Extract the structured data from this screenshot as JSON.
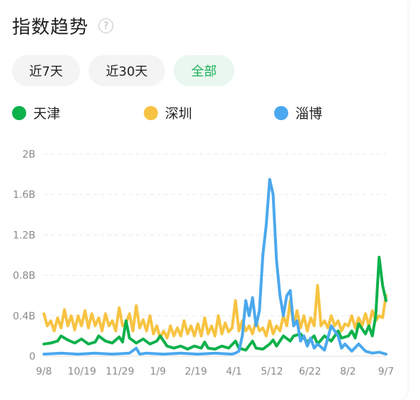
{
  "header": {
    "title": "指数趋势",
    "help_icon": "question-circle-icon"
  },
  "tabs": [
    {
      "label": "近7天",
      "active": false
    },
    {
      "label": "近30天",
      "active": false
    },
    {
      "label": "全部",
      "active": true
    }
  ],
  "chart_data": {
    "type": "line",
    "x_ticks": [
      "9/8",
      "10/19",
      "11/29",
      "1/9",
      "2/19",
      "4/1",
      "5/12",
      "6/22",
      "8/2",
      "9/7"
    ],
    "y_ticks": [
      "0",
      "0.4B",
      "0.8B",
      "1.2B",
      "1.6B",
      "2B"
    ],
    "ylim": [
      0,
      2.0
    ],
    "grid": true,
    "legend_position": "top",
    "series": [
      {
        "name": "天津",
        "color": "#0db14b",
        "points": [
          [
            0,
            0.12
          ],
          [
            0.02,
            0.13
          ],
          [
            0.04,
            0.15
          ],
          [
            0.05,
            0.2
          ],
          [
            0.07,
            0.16
          ],
          [
            0.09,
            0.13
          ],
          [
            0.11,
            0.17
          ],
          [
            0.13,
            0.12
          ],
          [
            0.15,
            0.14
          ],
          [
            0.16,
            0.2
          ],
          [
            0.18,
            0.15
          ],
          [
            0.2,
            0.13
          ],
          [
            0.22,
            0.19
          ],
          [
            0.23,
            0.14
          ],
          [
            0.24,
            0.35
          ],
          [
            0.25,
            0.18
          ],
          [
            0.27,
            0.13
          ],
          [
            0.29,
            0.17
          ],
          [
            0.31,
            0.12
          ],
          [
            0.33,
            0.15
          ],
          [
            0.34,
            0.2
          ],
          [
            0.36,
            0.1
          ],
          [
            0.38,
            0.08
          ],
          [
            0.4,
            0.1
          ],
          [
            0.42,
            0.07
          ],
          [
            0.44,
            0.1
          ],
          [
            0.46,
            0.08
          ],
          [
            0.47,
            0.14
          ],
          [
            0.48,
            0.08
          ],
          [
            0.5,
            0.07
          ],
          [
            0.52,
            0.1
          ],
          [
            0.54,
            0.08
          ],
          [
            0.56,
            0.15
          ],
          [
            0.57,
            0.08
          ],
          [
            0.59,
            0.06
          ],
          [
            0.61,
            0.15
          ],
          [
            0.62,
            0.08
          ],
          [
            0.64,
            0.07
          ],
          [
            0.66,
            0.12
          ],
          [
            0.67,
            0.16
          ],
          [
            0.68,
            0.1
          ],
          [
            0.7,
            0.2
          ],
          [
            0.72,
            0.15
          ],
          [
            0.73,
            0.2
          ],
          [
            0.75,
            0.22
          ],
          [
            0.77,
            0.14
          ],
          [
            0.79,
            0.2
          ],
          [
            0.8,
            0.12
          ],
          [
            0.82,
            0.2
          ],
          [
            0.84,
            0.15
          ],
          [
            0.86,
            0.25
          ],
          [
            0.87,
            0.18
          ],
          [
            0.89,
            0.2
          ],
          [
            0.9,
            0.25
          ],
          [
            0.91,
            0.18
          ],
          [
            0.92,
            0.32
          ],
          [
            0.94,
            0.22
          ],
          [
            0.95,
            0.3
          ],
          [
            0.96,
            0.2
          ],
          [
            0.97,
            0.4
          ],
          [
            0.98,
            0.98
          ],
          [
            0.99,
            0.7
          ],
          [
            1.0,
            0.55
          ]
        ]
      },
      {
        "name": "深圳",
        "color": "#f7c342",
        "points": [
          [
            0,
            0.42
          ],
          [
            0.01,
            0.3
          ],
          [
            0.02,
            0.35
          ],
          [
            0.03,
            0.25
          ],
          [
            0.04,
            0.38
          ],
          [
            0.05,
            0.28
          ],
          [
            0.06,
            0.46
          ],
          [
            0.07,
            0.3
          ],
          [
            0.08,
            0.4
          ],
          [
            0.09,
            0.26
          ],
          [
            0.1,
            0.4
          ],
          [
            0.11,
            0.3
          ],
          [
            0.12,
            0.45
          ],
          [
            0.13,
            0.28
          ],
          [
            0.14,
            0.42
          ],
          [
            0.15,
            0.3
          ],
          [
            0.16,
            0.38
          ],
          [
            0.17,
            0.25
          ],
          [
            0.18,
            0.42
          ],
          [
            0.19,
            0.3
          ],
          [
            0.2,
            0.35
          ],
          [
            0.21,
            0.25
          ],
          [
            0.22,
            0.48
          ],
          [
            0.23,
            0.3
          ],
          [
            0.24,
            0.33
          ],
          [
            0.25,
            0.42
          ],
          [
            0.26,
            0.25
          ],
          [
            0.27,
            0.5
          ],
          [
            0.28,
            0.28
          ],
          [
            0.29,
            0.36
          ],
          [
            0.3,
            0.25
          ],
          [
            0.31,
            0.4
          ],
          [
            0.32,
            0.22
          ],
          [
            0.33,
            0.3
          ],
          [
            0.34,
            0.18
          ],
          [
            0.35,
            0.25
          ],
          [
            0.36,
            0.18
          ],
          [
            0.37,
            0.3
          ],
          [
            0.38,
            0.2
          ],
          [
            0.39,
            0.28
          ],
          [
            0.4,
            0.2
          ],
          [
            0.41,
            0.35
          ],
          [
            0.42,
            0.22
          ],
          [
            0.43,
            0.3
          ],
          [
            0.44,
            0.2
          ],
          [
            0.45,
            0.32
          ],
          [
            0.46,
            0.2
          ],
          [
            0.47,
            0.38
          ],
          [
            0.48,
            0.22
          ],
          [
            0.49,
            0.3
          ],
          [
            0.5,
            0.2
          ],
          [
            0.51,
            0.4
          ],
          [
            0.52,
            0.22
          ],
          [
            0.53,
            0.33
          ],
          [
            0.54,
            0.24
          ],
          [
            0.55,
            0.28
          ],
          [
            0.56,
            0.55
          ],
          [
            0.57,
            0.25
          ],
          [
            0.58,
            0.35
          ],
          [
            0.59,
            0.25
          ],
          [
            0.6,
            0.3
          ],
          [
            0.61,
            0.22
          ],
          [
            0.62,
            0.35
          ],
          [
            0.63,
            0.25
          ],
          [
            0.64,
            0.28
          ],
          [
            0.65,
            0.2
          ],
          [
            0.66,
            0.35
          ],
          [
            0.67,
            0.22
          ],
          [
            0.68,
            0.3
          ],
          [
            0.69,
            0.25
          ],
          [
            0.7,
            0.4
          ],
          [
            0.71,
            0.3
          ],
          [
            0.72,
            0.55
          ],
          [
            0.73,
            0.3
          ],
          [
            0.74,
            0.45
          ],
          [
            0.75,
            0.28
          ],
          [
            0.76,
            0.4
          ],
          [
            0.77,
            0.25
          ],
          [
            0.78,
            0.38
          ],
          [
            0.79,
            0.3
          ],
          [
            0.8,
            0.7
          ],
          [
            0.81,
            0.3
          ],
          [
            0.82,
            0.35
          ],
          [
            0.83,
            0.28
          ],
          [
            0.84,
            0.4
          ],
          [
            0.85,
            0.3
          ],
          [
            0.86,
            0.35
          ],
          [
            0.87,
            0.25
          ],
          [
            0.88,
            0.32
          ],
          [
            0.89,
            0.3
          ],
          [
            0.9,
            0.4
          ],
          [
            0.91,
            0.28
          ],
          [
            0.92,
            0.38
          ],
          [
            0.93,
            0.3
          ],
          [
            0.94,
            0.42
          ],
          [
            0.95,
            0.3
          ],
          [
            0.96,
            0.45
          ],
          [
            0.97,
            0.35
          ],
          [
            0.98,
            0.4
          ],
          [
            0.99,
            0.38
          ],
          [
            1.0,
            0.6
          ]
        ]
      },
      {
        "name": "淄博",
        "color": "#4ba8ee",
        "points": [
          [
            0,
            0.02
          ],
          [
            0.05,
            0.03
          ],
          [
            0.1,
            0.02
          ],
          [
            0.15,
            0.03
          ],
          [
            0.2,
            0.02
          ],
          [
            0.25,
            0.03
          ],
          [
            0.27,
            0.08
          ],
          [
            0.28,
            0.02
          ],
          [
            0.3,
            0.03
          ],
          [
            0.35,
            0.02
          ],
          [
            0.4,
            0.03
          ],
          [
            0.45,
            0.02
          ],
          [
            0.5,
            0.03
          ],
          [
            0.55,
            0.02
          ],
          [
            0.56,
            0.03
          ],
          [
            0.57,
            0.05
          ],
          [
            0.58,
            0.2
          ],
          [
            0.59,
            0.55
          ],
          [
            0.6,
            0.4
          ],
          [
            0.61,
            0.58
          ],
          [
            0.62,
            0.3
          ],
          [
            0.63,
            0.45
          ],
          [
            0.64,
            1.0
          ],
          [
            0.65,
            1.3
          ],
          [
            0.66,
            1.75
          ],
          [
            0.67,
            1.6
          ],
          [
            0.68,
            0.95
          ],
          [
            0.69,
            0.6
          ],
          [
            0.7,
            0.4
          ],
          [
            0.71,
            0.6
          ],
          [
            0.72,
            0.65
          ],
          [
            0.73,
            0.3
          ],
          [
            0.74,
            0.35
          ],
          [
            0.75,
            0.15
          ],
          [
            0.76,
            0.2
          ],
          [
            0.77,
            0.1
          ],
          [
            0.78,
            0.18
          ],
          [
            0.79,
            0.08
          ],
          [
            0.8,
            0.12
          ],
          [
            0.82,
            0.06
          ],
          [
            0.84,
            0.3
          ],
          [
            0.86,
            0.2
          ],
          [
            0.87,
            0.08
          ],
          [
            0.88,
            0.12
          ],
          [
            0.9,
            0.05
          ],
          [
            0.92,
            0.12
          ],
          [
            0.94,
            0.05
          ],
          [
            0.96,
            0.03
          ],
          [
            0.98,
            0.04
          ],
          [
            1.0,
            0.02
          ]
        ]
      }
    ]
  }
}
